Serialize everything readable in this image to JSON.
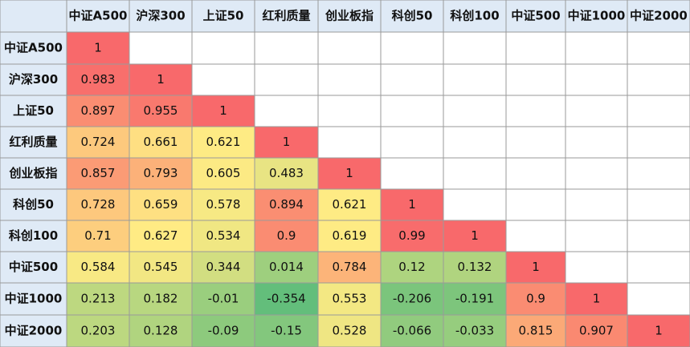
{
  "chart_data": {
    "type": "heatmap",
    "title": "",
    "xlabel": "",
    "ylabel": "",
    "grid": true,
    "rows": [
      "中证A500",
      "沪深300",
      "上证50",
      "红利质量",
      "创业板指",
      "科创50",
      "科创100",
      "中证500",
      "中证1000",
      "中证2000"
    ],
    "columns": [
      "中证A500",
      "沪深300",
      "上证50",
      "红利质量",
      "创业板指",
      "科创50",
      "科创100",
      "中证500",
      "中证1000",
      "中证2000"
    ],
    "values": [
      [
        1
      ],
      [
        0.983,
        1
      ],
      [
        0.897,
        0.955,
        1
      ],
      [
        0.724,
        0.661,
        0.621,
        1
      ],
      [
        0.857,
        0.793,
        0.605,
        0.483,
        1
      ],
      [
        0.728,
        0.659,
        0.578,
        0.894,
        0.621,
        1
      ],
      [
        0.71,
        0.627,
        0.534,
        0.9,
        0.619,
        0.99,
        1
      ],
      [
        0.584,
        0.545,
        0.344,
        0.014,
        0.784,
        0.12,
        0.132,
        1
      ],
      [
        0.213,
        0.182,
        -0.01,
        -0.354,
        0.553,
        -0.206,
        -0.191,
        0.9,
        1
      ],
      [
        0.203,
        0.128,
        -0.09,
        -0.15,
        0.528,
        -0.066,
        -0.033,
        0.815,
        0.907,
        1
      ]
    ],
    "value_labels": [
      [
        "1"
      ],
      [
        "0.983",
        "1"
      ],
      [
        "0.897",
        "0.955",
        "1"
      ],
      [
        "0.724",
        "0.661",
        "0.621",
        "1"
      ],
      [
        "0.857",
        "0.793",
        "0.605",
        "0.483",
        "1"
      ],
      [
        "0.728",
        "0.659",
        "0.578",
        "0.894",
        "0.621",
        "1"
      ],
      [
        "0.71",
        "0.627",
        "0.534",
        "0.9",
        "0.619",
        "0.99",
        "1"
      ],
      [
        "0.584",
        "0.545",
        "0.344",
        "0.014",
        "0.784",
        "0.12",
        "0.132",
        "1"
      ],
      [
        "0.213",
        "0.182",
        "-0.01",
        "-0.354",
        "0.553",
        "-0.206",
        "-0.191",
        "0.9",
        "1"
      ],
      [
        "0.203",
        "0.128",
        "-0.09",
        "-0.15",
        "0.528",
        "-0.066",
        "-0.033",
        "0.815",
        "0.907",
        "1"
      ]
    ],
    "color_scale": {
      "low": "#63be7b",
      "mid": "#ffeb84",
      "high": "#f8696b"
    },
    "header_fill": "#dfeaf6",
    "border_color": "#9a9a9a"
  }
}
